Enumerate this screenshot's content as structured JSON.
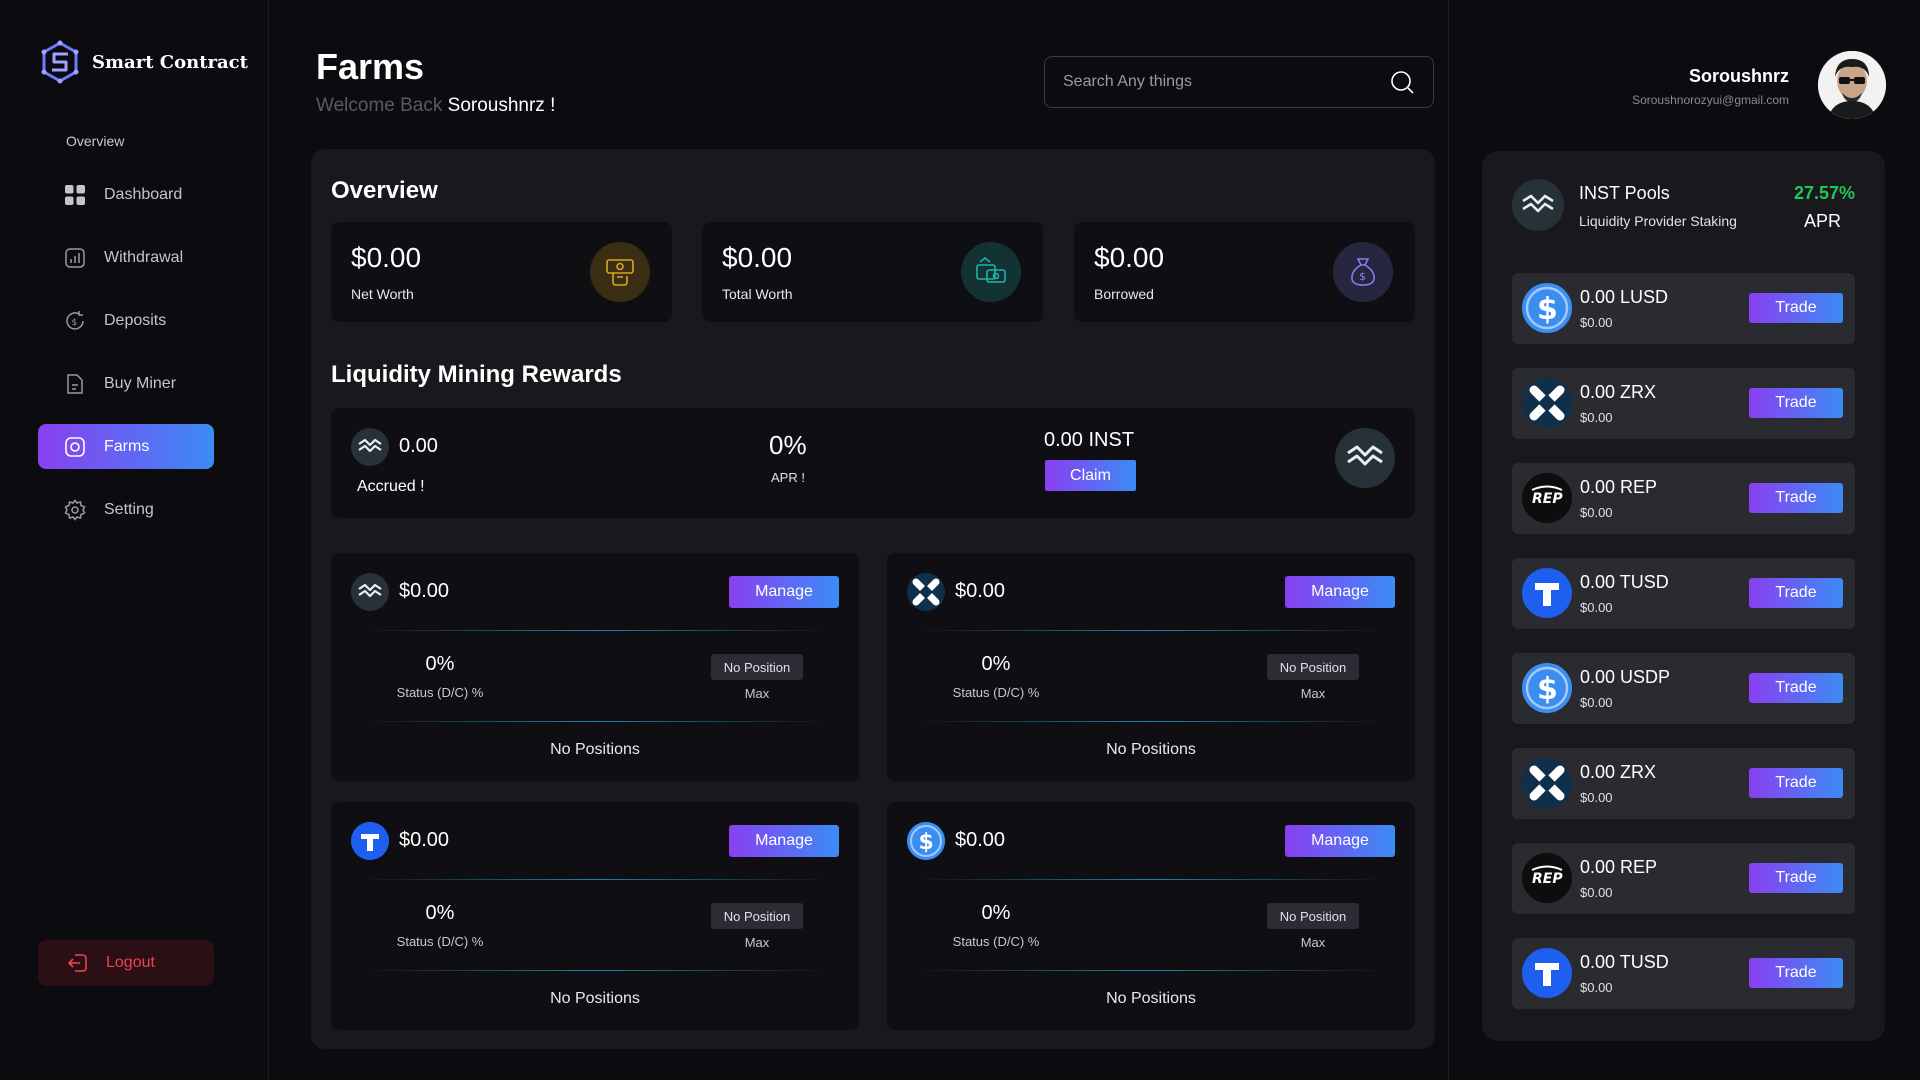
{
  "brand": {
    "name": "Smart Contract"
  },
  "sidebar": {
    "section_label": "Overview",
    "items": [
      {
        "label": "Dashboard",
        "icon": "grid-icon"
      },
      {
        "label": "Withdrawal",
        "icon": "chart-icon"
      },
      {
        "label": "Deposits",
        "icon": "dollar-cycle-icon"
      },
      {
        "label": "Buy Miner",
        "icon": "document-icon"
      },
      {
        "label": "Farms",
        "icon": "farm-icon",
        "active": true
      },
      {
        "label": "Setting",
        "icon": "gear-icon"
      }
    ],
    "logout_label": "Logout"
  },
  "header": {
    "title": "Farms",
    "welcome_prefix": "Welcome Back",
    "welcome_name": "Soroushnrz !",
    "search_placeholder": "Search Any things"
  },
  "user": {
    "name": "Soroushnrz",
    "email": "Soroushnorozyui@gmail.com"
  },
  "overview": {
    "title": "Overview",
    "cards": [
      {
        "value": "$0.00",
        "label": "Net Worth",
        "icon": "money-hand-icon",
        "color": "#d9a520"
      },
      {
        "value": "$0.00",
        "label": "Total Worth",
        "icon": "cash-card-icon",
        "color": "#1fb5a8"
      },
      {
        "value": "$0.00",
        "label": "Borrowed",
        "icon": "money-bag-icon",
        "color": "#8a7cf0"
      }
    ]
  },
  "liquidity": {
    "title": "Liquidity Mining Rewards",
    "accrued_value": "0.00",
    "accrued_label": "Accrued !",
    "apr_value": "0%",
    "apr_label": "APR !",
    "inst_value": "0.00 INST",
    "claim_label": "Claim"
  },
  "positions": [
    {
      "token": "inst",
      "value": "$0.00",
      "manage": "Manage",
      "pct": "0%",
      "status_label": "Status (D/C) %",
      "badge": "No Position",
      "max_label": "Max",
      "footer": "No Positions"
    },
    {
      "token": "zrx",
      "value": "$0.00",
      "manage": "Manage",
      "pct": "0%",
      "status_label": "Status (D/C) %",
      "badge": "No Position",
      "max_label": "Max",
      "footer": "No Positions"
    },
    {
      "token": "tusd",
      "value": "$0.00",
      "manage": "Manage",
      "pct": "0%",
      "status_label": "Status (D/C) %",
      "badge": "No Position",
      "max_label": "Max",
      "footer": "No Positions"
    },
    {
      "token": "usd",
      "value": "$0.00",
      "manage": "Manage",
      "pct": "0%",
      "status_label": "Status (D/C) %",
      "badge": "No Position",
      "max_label": "Max",
      "footer": "No Positions"
    }
  ],
  "pools": {
    "title": "INST Pools",
    "subtitle": "Liquidity Provider Staking",
    "apr_value": "27.57%",
    "apr_label": "APR",
    "rows": [
      {
        "token": "usd",
        "amount": "0.00 LUSD",
        "usd": "$0.00",
        "trade": "Trade"
      },
      {
        "token": "zrx",
        "amount": "0.00 ZRX",
        "usd": "$0.00",
        "trade": "Trade"
      },
      {
        "token": "rep",
        "amount": "0.00 REP",
        "usd": "$0.00",
        "trade": "Trade"
      },
      {
        "token": "tusd",
        "amount": "0.00 TUSD",
        "usd": "$0.00",
        "trade": "Trade"
      },
      {
        "token": "usd",
        "amount": "0.00 USDP",
        "usd": "$0.00",
        "trade": "Trade"
      },
      {
        "token": "zrx",
        "amount": "0.00 ZRX",
        "usd": "$0.00",
        "trade": "Trade"
      },
      {
        "token": "rep",
        "amount": "0.00 REP",
        "usd": "$0.00",
        "trade": "Trade"
      },
      {
        "token": "tusd",
        "amount": "0.00 TUSD",
        "usd": "$0.00",
        "trade": "Trade"
      }
    ]
  },
  "colors": {
    "accent_start": "#8a3ff0",
    "accent_end": "#3b8cf5",
    "apr_green": "#22c55e",
    "logout_red": "#f0434e"
  }
}
